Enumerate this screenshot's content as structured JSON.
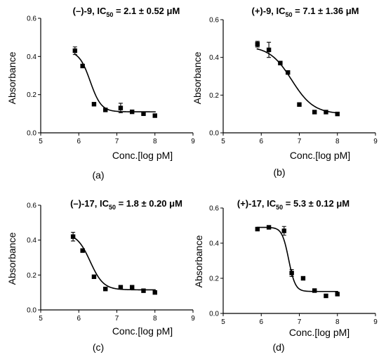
{
  "chart_data": [
    {
      "type": "scatter",
      "panel_label": "(a)",
      "title_prefix": "(–)-9, IC",
      "title_sub": "50",
      "title_value": " = 2.1 ± 0.52 μM",
      "xlabel": "Conc.[log pM]",
      "ylabel": "Absorbance",
      "xlim": [
        5,
        9
      ],
      "ylim": [
        0,
        0.6
      ],
      "xticks": [
        "5",
        "6",
        "7",
        "8",
        "9"
      ],
      "yticks": [
        "0.0",
        "0.2",
        "0.4",
        "0.6"
      ],
      "grid": false,
      "x": [
        5.9,
        6.1,
        6.4,
        6.7,
        7.1,
        7.4,
        7.7,
        8.0
      ],
      "y": [
        0.43,
        0.35,
        0.15,
        0.12,
        0.13,
        0.11,
        0.1,
        0.09
      ],
      "errors": [
        0.02,
        0,
        0,
        0,
        0.025,
        0,
        0,
        0
      ],
      "fit": {
        "top": 0.43,
        "bottom": 0.11,
        "logIC50": 6.3,
        "hill": 3.0
      }
    },
    {
      "type": "scatter",
      "panel_label": "(b)",
      "title_prefix": "(+)-9, IC",
      "title_sub": "50",
      "title_value": " = 7.1 ± 1.36 μM",
      "xlabel": "Conc.[log pM]",
      "ylabel": "Absorbance",
      "xlim": [
        5,
        9
      ],
      "ylim": [
        0,
        0.6
      ],
      "xticks": [
        "5",
        "6",
        "7",
        "8",
        "9"
      ],
      "yticks": [
        "0.0",
        "0.2",
        "0.4",
        "0.6"
      ],
      "grid": false,
      "x": [
        5.9,
        6.2,
        6.5,
        6.7,
        7.0,
        7.4,
        7.7,
        8.0
      ],
      "y": [
        0.47,
        0.44,
        0.37,
        0.32,
        0.15,
        0.11,
        0.11,
        0.1
      ],
      "errors": [
        0.015,
        0.04,
        0,
        0,
        0,
        0,
        0,
        0
      ],
      "fit": {
        "top": 0.46,
        "bottom": 0.1,
        "logIC50": 6.8,
        "hill": 1.5
      }
    },
    {
      "type": "scatter",
      "panel_label": "(c)",
      "title_prefix": "(–)-17, IC",
      "title_sub": "50",
      "title_value": " = 1.8 ± 0.20 μM",
      "xlabel": "Conc.[log pM]",
      "ylabel": "Absorbance",
      "xlim": [
        5,
        9
      ],
      "ylim": [
        0,
        0.6
      ],
      "xticks": [
        "5",
        "6",
        "7",
        "8",
        "9"
      ],
      "yticks": [
        "0.0",
        "0.2",
        "0.4",
        "0.6"
      ],
      "grid": false,
      "x": [
        5.85,
        6.1,
        6.4,
        6.7,
        7.1,
        7.4,
        7.7,
        8.0
      ],
      "y": [
        0.42,
        0.34,
        0.19,
        0.12,
        0.13,
        0.13,
        0.11,
        0.1
      ],
      "errors": [
        0.025,
        0,
        0,
        0,
        0,
        0,
        0,
        0
      ],
      "fit": {
        "top": 0.44,
        "bottom": 0.115,
        "logIC50": 6.3,
        "hill": 2.5
      }
    },
    {
      "type": "scatter",
      "panel_label": "(d)",
      "title_prefix": "(+)-17, IC",
      "title_sub": "50",
      "title_value": " = 5.3 ± 0.12 μM",
      "xlabel": "Conc.[log pM]",
      "ylabel": "Absorbance",
      "xlim": [
        5,
        9
      ],
      "ylim": [
        0,
        0.6
      ],
      "xticks": [
        "5",
        "6",
        "7",
        "8",
        "9"
      ],
      "yticks": [
        "0.0",
        "0.2",
        "0.4",
        "0.6"
      ],
      "grid": false,
      "x": [
        5.9,
        6.2,
        6.6,
        6.8,
        7.1,
        7.4,
        7.7,
        8.0
      ],
      "y": [
        0.48,
        0.49,
        0.47,
        0.23,
        0.2,
        0.13,
        0.1,
        0.11
      ],
      "errors": [
        0,
        0,
        0.025,
        0.02,
        0,
        0,
        0,
        0
      ],
      "fit": {
        "top": 0.49,
        "bottom": 0.125,
        "logIC50": 6.72,
        "hill": 5.0
      }
    }
  ]
}
